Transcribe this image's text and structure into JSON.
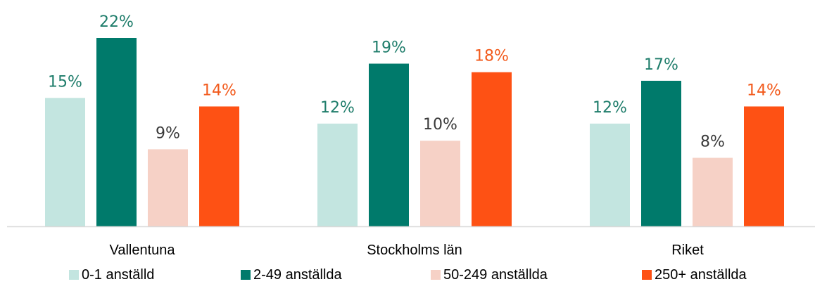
{
  "chart_data": {
    "type": "bar",
    "title": "",
    "xlabel": "",
    "ylabel": "",
    "ylim": [
      0,
      25
    ],
    "grid": false,
    "legend_position": "bottom",
    "categories": [
      "Vallentuna",
      "Stockholms län",
      "Riket"
    ],
    "series": [
      {
        "name": "0-1 anställd",
        "color": "#c3e5e0",
        "label_color": "#1f7d6b",
        "values": [
          15,
          12,
          12
        ],
        "labels": [
          "15%",
          "12%",
          "12%"
        ]
      },
      {
        "name": "2-49 anställda",
        "color": "#007a6b",
        "label_color": "#1f7d6b",
        "values": [
          22,
          19,
          17
        ],
        "labels": [
          "22%",
          "19%",
          "17%"
        ]
      },
      {
        "name": "50-249 anställda",
        "color": "#f6d1c6",
        "label_color": "#3a3a3a",
        "values": [
          9,
          10,
          8
        ],
        "labels": [
          "9%",
          "10%",
          "8%"
        ]
      },
      {
        "name": "250+ anställda",
        "color": "#fe5114",
        "label_color": "#f25a1c",
        "values": [
          14,
          18,
          14
        ],
        "labels": [
          "14%",
          "18%",
          "14%"
        ]
      }
    ]
  },
  "colors": {
    "axis": "#d9d9d9"
  }
}
